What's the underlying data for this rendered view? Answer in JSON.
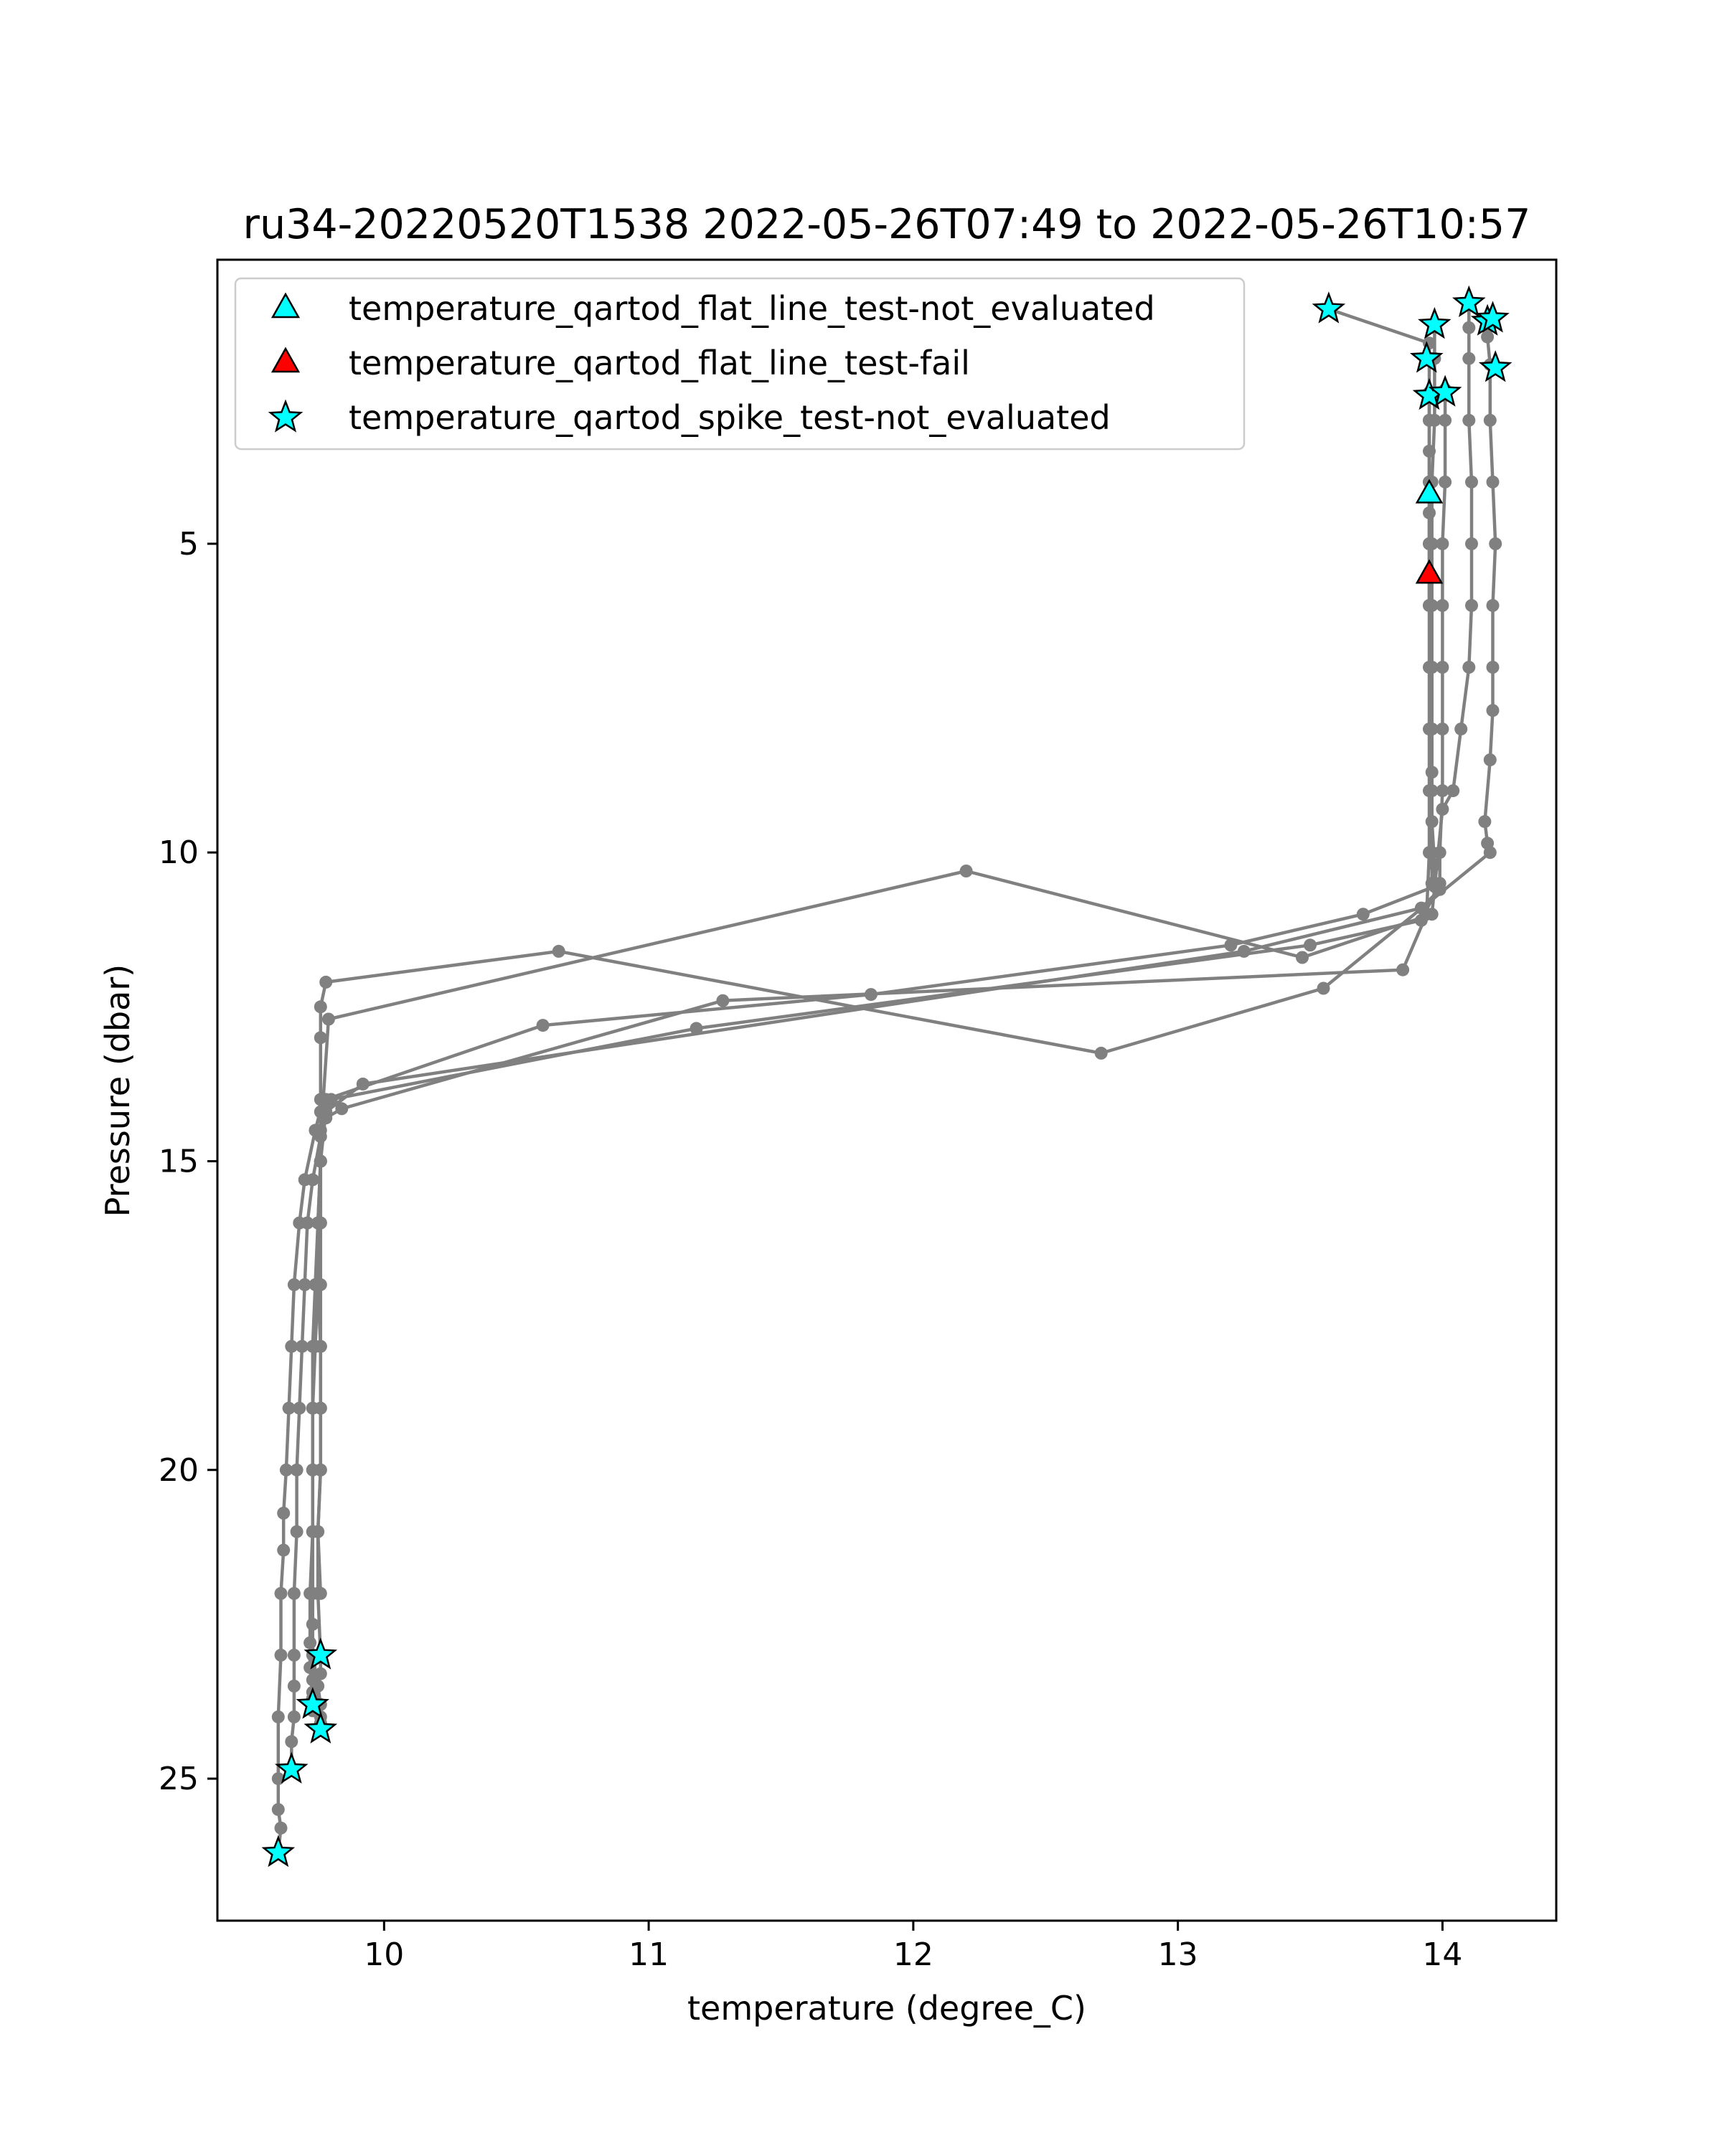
{
  "chart_data": {
    "type": "scatter",
    "title": "ru34-20220520T1538 2022-05-26T07:49 to 2022-05-26T10:57",
    "xlabel": "temperature (degree_C)",
    "ylabel": "Pressure (dbar)",
    "xlim": [
      9.37,
      14.43
    ],
    "ylim": [
      27.3,
      0.4
    ],
    "y_inverted": true,
    "grid": false,
    "legend_position": "top-left",
    "x_ticks": [
      {
        "value": 10,
        "label": "10"
      },
      {
        "value": 11,
        "label": "11"
      },
      {
        "value": 12,
        "label": "12"
      },
      {
        "value": 13,
        "label": "13"
      },
      {
        "value": 14,
        "label": "14"
      }
    ],
    "y_ticks": [
      {
        "value": 5,
        "label": "5"
      },
      {
        "value": 10,
        "label": "10"
      },
      {
        "value": 15,
        "label": "15"
      },
      {
        "value": 20,
        "label": "20"
      },
      {
        "value": 25,
        "label": "25"
      }
    ],
    "profile_color": "#808080",
    "profiles": [
      {
        "x": [
          13.57,
          13.95,
          13.95,
          13.95,
          13.95,
          13.95,
          13.95,
          13.96,
          13.96,
          13.96,
          13.96,
          13.97,
          13.97,
          13.7,
          13.2,
          11.84,
          10.6,
          9.78,
          9.76,
          9.76,
          9.75,
          9.75,
          9.76,
          9.76,
          9.76,
          9.75,
          9.75,
          9.76,
          9.76,
          9.75,
          9.76,
          9.76,
          9.76,
          9.76
        ],
        "y": [
          1.2,
          1.75,
          2.0,
          3.0,
          4.0,
          5.0,
          6.0,
          7.0,
          8.0,
          8.7,
          9.5,
          10.2,
          10.55,
          11.0,
          11.5,
          12.3,
          12.8,
          14.0,
          14.2,
          15.0,
          16.0,
          17.0,
          18.0,
          19.0,
          20.0,
          21.0,
          22.0,
          23.0,
          23.3,
          23.5,
          23.8,
          24.0,
          24.1,
          24.2
        ]
      },
      {
        "x": [
          14.17,
          14.17,
          14.18,
          14.18,
          14.19,
          14.2,
          14.19,
          14.19,
          14.19,
          14.18,
          14.16,
          14.17,
          14.18,
          13.55,
          12.71,
          10.66,
          9.78,
          9.76,
          9.76,
          9.76,
          9.76,
          9.76,
          9.76,
          9.76,
          9.76,
          9.76,
          9.75,
          9.76
        ],
        "y": [
          1.5,
          1.65,
          2.1,
          3.0,
          4.0,
          5.0,
          6.0,
          7.0,
          7.7,
          8.5,
          9.5,
          9.85,
          10.0,
          12.2,
          13.25,
          11.6,
          12.1,
          12.5,
          13.0,
          14.0,
          15.0,
          16.0,
          17.0,
          18.0,
          19.0,
          20.0,
          21.0,
          22.0
        ]
      },
      {
        "x": [
          13.97,
          13.97,
          13.97,
          13.97,
          13.96,
          13.96,
          13.96,
          13.96,
          13.96,
          13.96,
          13.96,
          13.96,
          13.99,
          13.92,
          13.25,
          9.92,
          9.78,
          9.76,
          9.76,
          9.75,
          9.74,
          9.73,
          9.73,
          9.73,
          9.73,
          9.73,
          9.73,
          9.73,
          9.73,
          9.73
        ],
        "y": [
          1.5,
          2.0,
          2.6,
          3.0,
          4.0,
          5.0,
          6.0,
          7.0,
          8.0,
          9.0,
          10.0,
          10.5,
          10.6,
          10.9,
          11.6,
          13.75,
          14.2,
          15.0,
          16.0,
          17.0,
          18.0,
          19.0,
          20.0,
          21.0,
          22.0,
          22.5,
          23.0,
          23.4,
          23.6,
          23.8
        ]
      },
      {
        "x": [
          14.01,
          14.01,
          14.01,
          14.01,
          14.0,
          14.0,
          14.0,
          14.0,
          14.0,
          13.99,
          13.99,
          13.92,
          13.5,
          11.18,
          9.8,
          9.76,
          9.76,
          9.75,
          9.74,
          9.73,
          9.73,
          9.73,
          9.73,
          9.72,
          9.72,
          9.72,
          9.73,
          9.73
        ],
        "y": [
          2.5,
          2.6,
          3.0,
          4.0,
          5.0,
          6.0,
          7.0,
          8.0,
          9.0,
          10.0,
          10.5,
          11.1,
          11.5,
          12.85,
          14.0,
          14.5,
          15.0,
          16.0,
          17.0,
          18.0,
          19.0,
          20.0,
          21.0,
          22.0,
          22.8,
          23.2,
          23.7,
          23.9
        ]
      },
      {
        "x": [
          13.95,
          13.95,
          13.95,
          13.95,
          13.95,
          13.95,
          13.95,
          13.95,
          13.95,
          13.95,
          13.95,
          13.94,
          13.85,
          11.28,
          9.84,
          9.78,
          9.76,
          9.73,
          9.71,
          9.7,
          9.69,
          9.68,
          9.67,
          9.67,
          9.66,
          9.66,
          9.66,
          9.66,
          9.65,
          9.65
        ],
        "y": [
          2.55,
          3.0,
          3.5,
          4.0,
          4.5,
          5.0,
          6.0,
          7.0,
          8.0,
          9.0,
          10.0,
          11.0,
          11.9,
          12.4,
          14.15,
          14.3,
          14.6,
          15.3,
          16.0,
          17.0,
          18.0,
          19.0,
          20.0,
          21.0,
          22.0,
          23.0,
          23.5,
          24.0,
          24.4,
          24.85
        ]
      },
      {
        "x": [
          14.1,
          14.1,
          14.1,
          14.1,
          14.11,
          14.11,
          14.11,
          14.1,
          14.07,
          14.04,
          14.0,
          13.96,
          13.47,
          12.2,
          9.79,
          9.77,
          9.74,
          9.7,
          9.68,
          9.66,
          9.65,
          9.64,
          9.63,
          9.62,
          9.62,
          9.61,
          9.61,
          9.6,
          9.6,
          9.6,
          9.61,
          9.6
        ],
        "y": [
          1.1,
          1.5,
          2.0,
          3.0,
          4.0,
          5.0,
          6.0,
          7.0,
          8.0,
          9.0,
          9.3,
          11.0,
          11.7,
          10.3,
          12.7,
          14.0,
          14.5,
          15.3,
          16.0,
          17.0,
          18.0,
          19.0,
          20.0,
          20.7,
          21.3,
          22.0,
          23.0,
          24.0,
          25.0,
          25.5,
          25.8,
          26.2
        ]
      }
    ],
    "flags": [
      {
        "name": "temperature_qartod_flat_line_test-not_evaluated",
        "marker": "triangle",
        "color": "#00ffff",
        "points": [
          {
            "x": 13.95,
            "y": 4.2
          }
        ]
      },
      {
        "name": "temperature_qartod_flat_line_test-fail",
        "marker": "triangle",
        "color": "#ff0000",
        "points": [
          {
            "x": 13.95,
            "y": 5.5
          }
        ]
      },
      {
        "name": "temperature_qartod_spike_test-not_evaluated",
        "marker": "star",
        "color": "#00ffff",
        "points": [
          {
            "x": 13.57,
            "y": 1.2
          },
          {
            "x": 14.1,
            "y": 1.1
          },
          {
            "x": 13.97,
            "y": 1.45
          },
          {
            "x": 14.17,
            "y": 1.4
          },
          {
            "x": 14.19,
            "y": 1.35
          },
          {
            "x": 14.2,
            "y": 2.15
          },
          {
            "x": 13.94,
            "y": 2.0
          },
          {
            "x": 13.95,
            "y": 2.6
          },
          {
            "x": 14.01,
            "y": 2.55
          },
          {
            "x": 9.76,
            "y": 23.0
          },
          {
            "x": 9.73,
            "y": 23.8
          },
          {
            "x": 9.76,
            "y": 24.2
          },
          {
            "x": 9.65,
            "y": 24.85
          },
          {
            "x": 9.6,
            "y": 26.2
          }
        ]
      }
    ]
  }
}
